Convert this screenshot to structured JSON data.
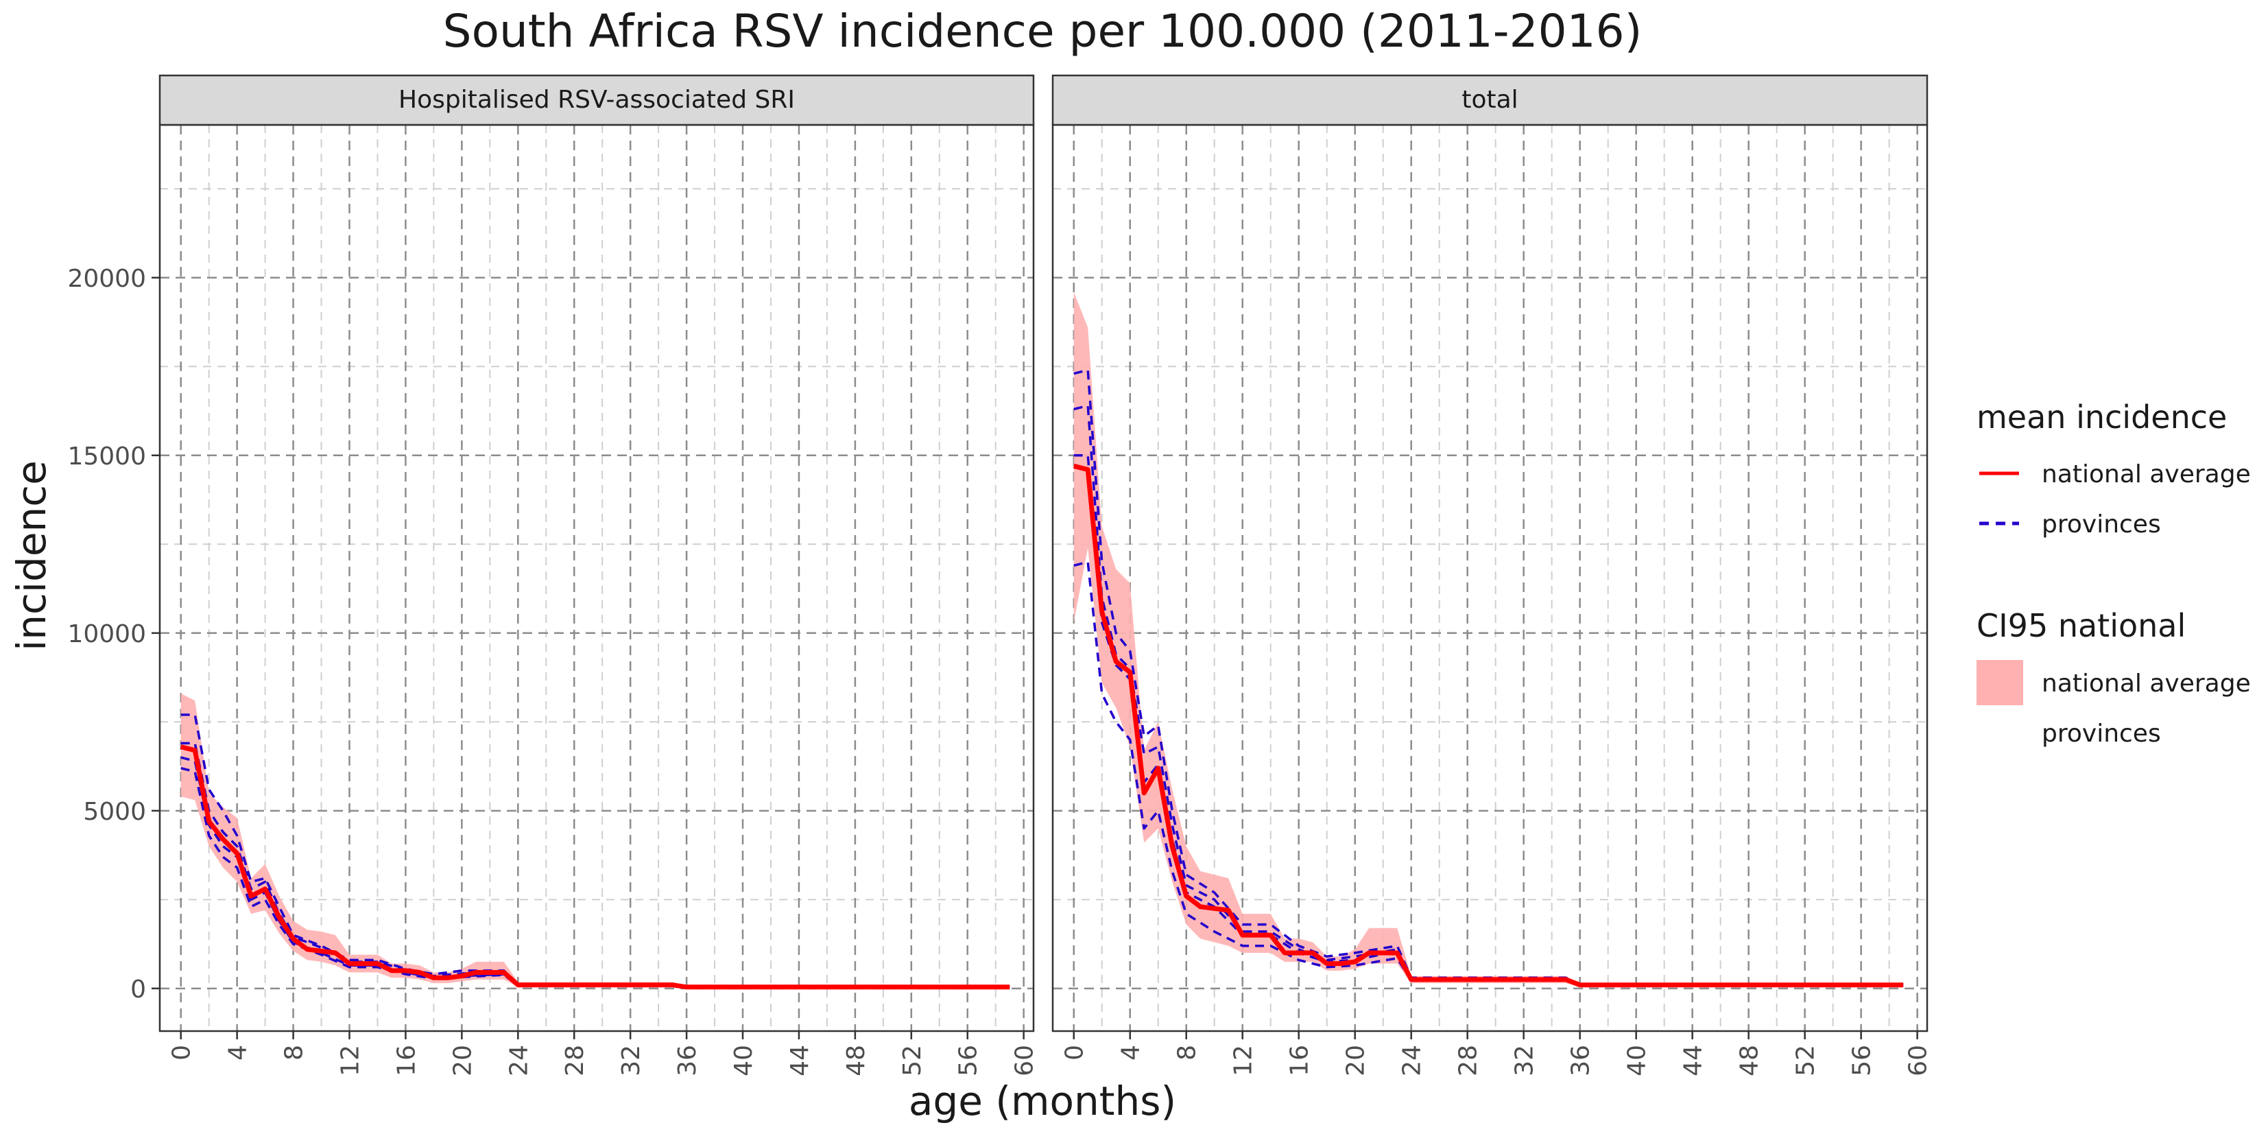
{
  "chart_data": {
    "type": "line",
    "title": "South Africa RSV incidence per 100.000 (2011-2016)",
    "xlabel": "age (months)",
    "ylabel": "incidence",
    "xlim": [
      -1.5,
      60.7
    ],
    "ylim": [
      -1200,
      24300
    ],
    "x_ticks": [
      0,
      4,
      8,
      12,
      16,
      20,
      24,
      28,
      32,
      36,
      40,
      44,
      48,
      52,
      56,
      60
    ],
    "y_ticks": [
      0,
      5000,
      10000,
      15000,
      20000
    ],
    "grid": "dashed major and minor",
    "legend_position": "right",
    "legend": {
      "mean_title": "mean incidence",
      "mean_items": [
        "national average",
        "provinces"
      ],
      "ci_title": "CI95 national",
      "ci_items": [
        "national average",
        "provinces"
      ]
    },
    "colors": {
      "national": "#ff0000",
      "provinces": "#2200cc",
      "ci_fill": "#ffb0b0",
      "strip_bg": "#d9d9d9"
    },
    "panels": [
      {
        "strip": "Hospitalised RSV-associated SRI",
        "national": {
          "x": [
            0,
            1,
            2,
            3,
            4,
            5,
            6,
            7,
            8,
            9,
            10,
            11,
            12,
            13,
            14,
            15,
            16,
            17,
            18,
            19,
            20,
            21,
            22,
            23,
            24,
            30,
            35,
            36,
            48,
            59
          ],
          "y": [
            6800,
            6700,
            4700,
            4200,
            3800,
            2600,
            2800,
            2000,
            1400,
            1100,
            1050,
            1000,
            700,
            700,
            700,
            500,
            500,
            450,
            300,
            300,
            350,
            450,
            450,
            450,
            100,
            100,
            100,
            40,
            40,
            40
          ]
        },
        "ci95": {
          "x": [
            0,
            1,
            2,
            3,
            4,
            5,
            6,
            7,
            8,
            9,
            10,
            11,
            12,
            13,
            14,
            15,
            16,
            17,
            18,
            19,
            20,
            21,
            22,
            23,
            24,
            30,
            35,
            36,
            48,
            59
          ],
          "lower": [
            5400,
            5300,
            4000,
            3400,
            3000,
            2100,
            2200,
            1550,
            1050,
            800,
            750,
            650,
            450,
            450,
            450,
            300,
            300,
            250,
            150,
            150,
            200,
            250,
            250,
            250,
            40,
            40,
            40,
            10,
            10,
            10
          ],
          "upper": [
            8300,
            8100,
            5500,
            5100,
            4800,
            3100,
            3500,
            2600,
            1900,
            1650,
            1600,
            1500,
            950,
            950,
            950,
            700,
            700,
            650,
            450,
            450,
            550,
            750,
            750,
            750,
            180,
            180,
            180,
            80,
            80,
            80
          ]
        },
        "provinces": [
          {
            "x": [
              0,
              1,
              2,
              3,
              4,
              5,
              6,
              7,
              8,
              10,
              12,
              14,
              16,
              18,
              20,
              23,
              24,
              35,
              36,
              59
            ],
            "y": [
              7700,
              7700,
              5600,
              5000,
              4300,
              3000,
              3100,
              2300,
              1500,
              1200,
              800,
              800,
              550,
              400,
              500,
              500,
              120,
              120,
              50,
              50
            ]
          },
          {
            "x": [
              0,
              1,
              2,
              3,
              4,
              5,
              6,
              7,
              8,
              10,
              12,
              14,
              16,
              18,
              20,
              23,
              24,
              35,
              36,
              59
            ],
            "y": [
              6500,
              6400,
              4600,
              4000,
              3700,
              2500,
              2700,
              1900,
              1300,
              1000,
              650,
              650,
              450,
              300,
              350,
              400,
              90,
              90,
              40,
              40
            ]
          },
          {
            "x": [
              0,
              1,
              2,
              3,
              4,
              5,
              6,
              7,
              8,
              10,
              12,
              14,
              16,
              18,
              20,
              23,
              24,
              35,
              36,
              59
            ],
            "y": [
              6200,
              6100,
              4300,
              3700,
              3400,
              2300,
              2500,
              1800,
              1250,
              950,
              600,
              600,
              400,
              280,
              320,
              380,
              80,
              80,
              35,
              35
            ]
          },
          {
            "x": [
              0,
              1,
              2,
              3,
              4,
              5,
              6,
              7,
              8,
              10,
              12,
              14,
              16,
              18,
              20,
              23,
              24,
              35,
              36,
              59
            ],
            "y": [
              6900,
              6900,
              5000,
              4400,
              4000,
              2800,
              3000,
              2100,
              1450,
              1150,
              750,
              750,
              520,
              350,
              420,
              450,
              110,
              110,
              45,
              45
            ]
          }
        ]
      },
      {
        "strip": "total",
        "national": {
          "x": [
            0,
            1,
            2,
            3,
            4,
            5,
            6,
            7,
            8,
            9,
            10,
            11,
            12,
            13,
            14,
            15,
            16,
            17,
            18,
            19,
            20,
            21,
            22,
            23,
            24,
            30,
            35,
            36,
            48,
            59
          ],
          "y": [
            14700,
            14600,
            10600,
            9200,
            8900,
            5500,
            6200,
            4000,
            2600,
            2300,
            2250,
            2200,
            1500,
            1500,
            1500,
            1000,
            1000,
            1000,
            700,
            700,
            750,
            1000,
            1000,
            1000,
            250,
            250,
            250,
            100,
            100,
            100
          ]
        },
        "ci95": {
          "x": [
            0,
            1,
            2,
            3,
            4,
            5,
            6,
            7,
            8,
            9,
            10,
            11,
            12,
            13,
            14,
            15,
            16,
            17,
            18,
            19,
            20,
            21,
            22,
            23,
            24,
            30,
            35,
            36,
            48,
            59
          ],
          "lower": [
            10300,
            12400,
            8600,
            7900,
            6800,
            4100,
            4500,
            3000,
            1800,
            1400,
            1300,
            1200,
            1000,
            1000,
            1000,
            750,
            750,
            750,
            500,
            500,
            550,
            700,
            700,
            700,
            150,
            150,
            150,
            50,
            50,
            50
          ],
          "upper": [
            19600,
            18600,
            13000,
            11800,
            11400,
            6700,
            7500,
            5600,
            4000,
            3300,
            3200,
            3100,
            2100,
            2100,
            2100,
            1400,
            1400,
            1300,
            900,
            900,
            1100,
            1700,
            1700,
            1700,
            350,
            350,
            350,
            150,
            150,
            150
          ]
        },
        "provinces": [
          {
            "x": [
              0,
              1,
              2,
              3,
              4,
              5,
              6,
              7,
              8,
              10,
              12,
              14,
              16,
              18,
              20,
              23,
              24,
              35,
              36,
              59
            ],
            "y": [
              17300,
              17400,
              12000,
              10000,
              9500,
              7100,
              7400,
              5000,
              3200,
              2700,
              1800,
              1800,
              1200,
              900,
              1000,
              1200,
              300,
              300,
              120,
              120
            ]
          },
          {
            "x": [
              0,
              1,
              2,
              3,
              4,
              5,
              6,
              7,
              8,
              10,
              12,
              14,
              16,
              18,
              20,
              23,
              24,
              35,
              36,
              59
            ],
            "y": [
              16300,
              16400,
              11000,
              9400,
              9000,
              6600,
              6800,
              4600,
              2900,
              2500,
              1600,
              1600,
              1100,
              800,
              900,
              1100,
              270,
              270,
              110,
              110
            ]
          },
          {
            "x": [
              0,
              1,
              2,
              3,
              4,
              5,
              6,
              7,
              8,
              10,
              12,
              14,
              16,
              18,
              20,
              23,
              24,
              35,
              36,
              59
            ],
            "y": [
              15000,
              15000,
              10300,
              9100,
              8700,
              5800,
              6300,
              4200,
              2700,
              2300,
              1500,
              1500,
              1000,
              750,
              800,
              1050,
              250,
              250,
              100,
              100
            ]
          },
          {
            "x": [
              0,
              1,
              2,
              3,
              4,
              5,
              6,
              7,
              8,
              10,
              12,
              14,
              16,
              18,
              20,
              23,
              24,
              35,
              36,
              59
            ],
            "y": [
              11900,
              12000,
              8300,
              7500,
              7000,
              4500,
              5000,
              3300,
              2100,
              1600,
              1200,
              1200,
              800,
              600,
              650,
              850,
              220,
              220,
              90,
              90
            ]
          }
        ]
      }
    ]
  }
}
